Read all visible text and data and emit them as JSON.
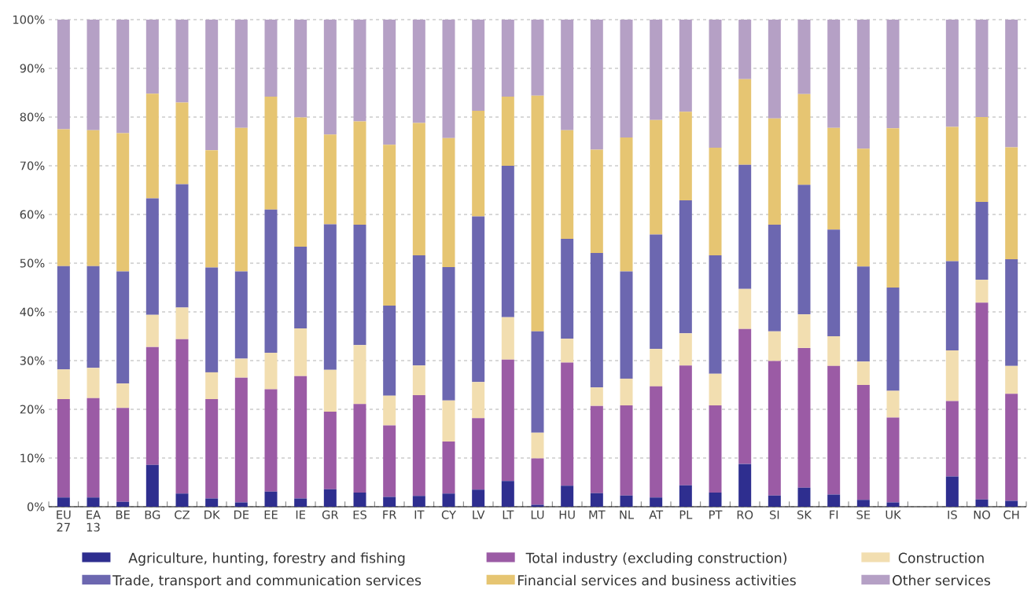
{
  "chart_data": {
    "type": "bar",
    "stacked": true,
    "grid": "y",
    "legend": "bottom",
    "categories": [
      "EU 27",
      "EA 13",
      "BE",
      "BG",
      "CZ",
      "DK",
      "DE",
      "EE",
      "IE",
      "GR",
      "ES",
      "FR",
      "IT",
      "CY",
      "LV",
      "LT",
      "LU",
      "HU",
      "MT",
      "NL",
      "AT",
      "PL",
      "PT",
      "RO",
      "SI",
      "SK",
      "FI",
      "SE",
      "UK",
      null,
      "IS",
      "NO",
      "CH"
    ],
    "ylim": [
      0,
      100
    ],
    "yticks": [
      {
        "value": 0,
        "label": "0%"
      },
      {
        "value": 10,
        "label": "10%"
      },
      {
        "value": 20,
        "label": "20%"
      },
      {
        "value": 30,
        "label": "30%"
      },
      {
        "value": 40,
        "label": "40%"
      },
      {
        "value": 50,
        "label": "50%"
      },
      {
        "value": 60,
        "label": "60%"
      },
      {
        "value": 70,
        "label": "70%"
      },
      {
        "value": 80,
        "label": "80%"
      },
      {
        "value": 90,
        "label": "90%"
      },
      {
        "value": 100,
        "label": "100%"
      }
    ],
    "series": [
      {
        "name": "Agriculture, hunting, forestry and fishing",
        "color": "#2e2e8f",
        "values": [
          1.9,
          1.9,
          1.0,
          8.6,
          2.7,
          1.7,
          0.9,
          3.1,
          1.7,
          3.6,
          2.9,
          2.0,
          2.2,
          2.7,
          3.5,
          5.3,
          0.4,
          4.3,
          2.8,
          2.3,
          1.9,
          4.4,
          2.9,
          8.8,
          2.3,
          3.9,
          2.5,
          1.4,
          0.9,
          null,
          6.2,
          1.5,
          1.2
        ]
      },
      {
        "name": "Total industry (excluding construction)",
        "color": "#9b5ba5",
        "values": [
          20.2,
          20.4,
          19.3,
          24.2,
          31.7,
          20.4,
          25.6,
          21.0,
          25.1,
          15.9,
          18.2,
          14.7,
          20.7,
          10.7,
          14.7,
          24.9,
          9.5,
          25.3,
          17.9,
          18.5,
          22.8,
          24.6,
          17.9,
          27.7,
          27.6,
          28.7,
          26.4,
          23.6,
          17.4,
          null,
          15.5,
          40.4,
          22.0
        ]
      },
      {
        "name": "Construction",
        "color": "#f2deb0",
        "values": [
          6.1,
          6.2,
          5.0,
          6.6,
          6.5,
          5.5,
          3.9,
          7.5,
          9.8,
          8.6,
          12.1,
          6.1,
          6.1,
          8.4,
          7.4,
          8.7,
          5.3,
          4.9,
          3.8,
          5.5,
          7.7,
          6.6,
          6.5,
          8.2,
          6.1,
          6.9,
          6.1,
          4.8,
          5.5,
          null,
          10.4,
          4.7,
          5.7
        ]
      },
      {
        "name": "Trade, transport and communication services",
        "color": "#6c67b0",
        "values": [
          21.2,
          20.9,
          23.0,
          23.9,
          25.3,
          21.5,
          17.9,
          29.4,
          16.8,
          29.9,
          24.7,
          18.5,
          22.6,
          27.4,
          34.0,
          31.1,
          20.8,
          20.5,
          27.6,
          22.0,
          23.5,
          27.3,
          24.3,
          25.5,
          21.9,
          26.6,
          21.9,
          19.5,
          21.2,
          null,
          18.3,
          16.0,
          21.9
        ]
      },
      {
        "name": "Financial services and business activities",
        "color": "#e6c572",
        "values": [
          28.1,
          27.9,
          28.4,
          21.5,
          16.8,
          24.1,
          29.5,
          23.2,
          26.5,
          18.4,
          21.2,
          33.0,
          27.2,
          26.5,
          21.7,
          14.2,
          48.4,
          22.3,
          21.2,
          27.5,
          23.5,
          18.2,
          22.1,
          17.6,
          21.8,
          18.6,
          20.9,
          24.2,
          32.7,
          null,
          27.6,
          17.4,
          23.0
        ]
      },
      {
        "name": "Other services",
        "color": "#b5a0c5",
        "values": [
          22.5,
          22.7,
          23.3,
          15.2,
          17.0,
          26.8,
          22.2,
          15.8,
          20.1,
          23.6,
          20.9,
          25.7,
          21.2,
          24.3,
          18.7,
          15.8,
          15.6,
          22.7,
          26.7,
          24.2,
          20.6,
          18.9,
          26.3,
          12.2,
          20.3,
          15.3,
          22.2,
          26.5,
          22.3,
          null,
          22.0,
          20.0,
          26.2
        ]
      }
    ]
  }
}
